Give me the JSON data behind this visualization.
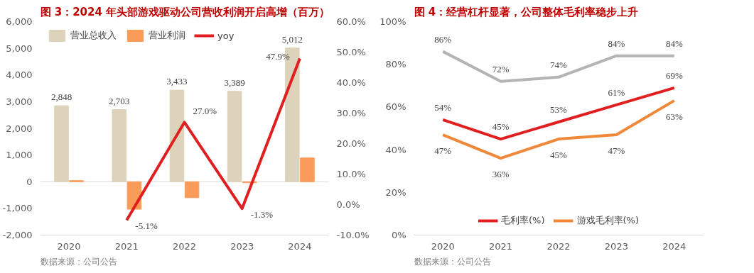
{
  "chart_data": [
    {
      "type": "bar",
      "title": "图 3：2024 年头部游戏驱动公司营收利润开启高增（百万）",
      "categories": [
        "2020",
        "2021",
        "2022",
        "2023",
        "2024"
      ],
      "series": [
        {
          "name": "营业总收入",
          "type": "bar",
          "color": "#ddd3bb",
          "values": [
            2848,
            2703,
            3433,
            3389,
            5012
          ],
          "value_labels": [
            "2,848",
            "2,703",
            "3,433",
            "3,389",
            "5,012"
          ]
        },
        {
          "name": "营业利润",
          "type": "bar",
          "color": "#fb9b58",
          "values": [
            40,
            -1030,
            -600,
            -40,
            890
          ]
        },
        {
          "name": "yoy",
          "type": "line",
          "axis": "y2",
          "color": "#e02020",
          "values": [
            null,
            -5.1,
            27.0,
            -1.3,
            47.9
          ],
          "value_labels": [
            null,
            "-5.1%",
            "27.0%",
            "-1.3%",
            "47.9%"
          ]
        }
      ],
      "ylim": [
        -2000,
        6000
      ],
      "yticks": [
        {
          "value": -2000,
          "label": "-2,000"
        },
        {
          "value": -1000,
          "label": "-1,000"
        },
        0,
        {
          "value": 1000,
          "label": "1,000"
        },
        {
          "value": 2000,
          "label": "2,000"
        },
        {
          "value": 3000,
          "label": "3,000"
        },
        {
          "value": 4000,
          "label": "4,000"
        },
        {
          "value": 5000,
          "label": "5,000"
        },
        {
          "value": 6000,
          "label": "6,000"
        }
      ],
      "y2lim": [
        -10,
        60
      ],
      "y2ticks": [
        {
          "value": -10,
          "label": "-10.0%"
        },
        {
          "value": 0,
          "label": "0.0%"
        },
        {
          "value": 10,
          "label": "10.0%"
        },
        {
          "value": 20,
          "label": "20.0%"
        },
        {
          "value": 30,
          "label": "30.0%"
        },
        {
          "value": 40,
          "label": "40.0%"
        },
        {
          "value": 50,
          "label": "50.0%"
        },
        {
          "value": 60,
          "label": "60.0%"
        }
      ],
      "ref_lines": [
        {
          "axis": "y",
          "value": 0,
          "color": "#d9d9d9"
        }
      ],
      "grid": false,
      "legend": "top left",
      "annotations": [
        "数据来源：公司公告"
      ]
    },
    {
      "type": "line",
      "title": "图 4：经营杠杆显著，公司整体毛利率稳步上升",
      "categories": [
        "2020",
        "2021",
        "2022",
        "2023",
        "2024"
      ],
      "series": [
        {
          "name": "毛利率(%)",
          "color": "#e02020",
          "values": [
            54,
            45,
            53,
            61,
            69
          ],
          "value_labels": [
            "54%",
            "45%",
            "53%",
            "61%",
            "69%"
          ]
        },
        {
          "name": "游戏毛利率(%)",
          "color": "#f0883a",
          "values": [
            47,
            36,
            45,
            47,
            63
          ],
          "value_labels": [
            "47%",
            "36%",
            "45%",
            "47%",
            "63%"
          ]
        },
        {
          "color": "#b4b4b4",
          "values": [
            86,
            72,
            74,
            84,
            84
          ],
          "value_labels": [
            "86%",
            "72%",
            "74%",
            "84%",
            "84%"
          ]
        }
      ],
      "ylim": [
        0,
        100
      ],
      "yticks": [
        {
          "value": 0,
          "label": "0%"
        },
        {
          "value": 20,
          "label": "20%"
        },
        {
          "value": 40,
          "label": "40%"
        },
        {
          "value": 60,
          "label": "60%"
        },
        {
          "value": 80,
          "label": "80%"
        },
        {
          "value": 100,
          "label": "100%"
        }
      ],
      "grid": false,
      "legend": "bottom",
      "marker": "none",
      "annotations": [
        "数据来源：公司公告"
      ]
    }
  ]
}
